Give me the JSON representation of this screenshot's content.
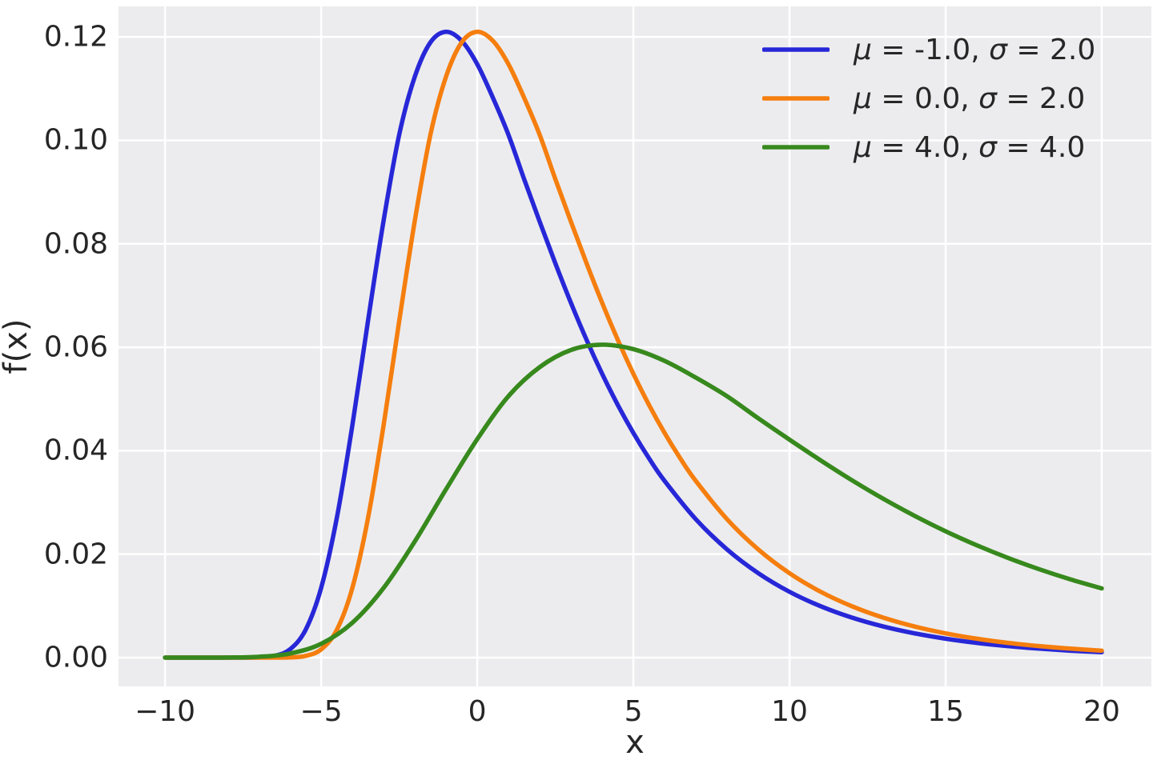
{
  "figure": {
    "background": "#ffffff",
    "plot_background": "#ececee",
    "grid_color": "#ffffff",
    "text_color": "#262626"
  },
  "chart_data": {
    "type": "line",
    "title": "",
    "xlabel": "x",
    "ylabel": "f(x)",
    "grid": true,
    "legend_position": "upper right",
    "xaxis": {
      "lim": [
        -11.49,
        21.59
      ],
      "ticks": [
        -10,
        -5,
        0,
        5,
        10,
        15,
        20
      ],
      "tick_labels": [
        "−10",
        "−5",
        "0",
        "5",
        "10",
        "15",
        "20"
      ]
    },
    "yaxis": {
      "lim": [
        -0.00557,
        0.1259
      ],
      "ticks": [
        0.0,
        0.02,
        0.04,
        0.06,
        0.08,
        0.1,
        0.12
      ],
      "tick_labels": [
        "0.00",
        "0.02",
        "0.04",
        "0.06",
        "0.08",
        "0.10",
        "0.12"
      ]
    },
    "legend_symbols": {
      "mu": "μ",
      "sigma": "σ",
      "equals": " = ",
      "separator": ", "
    },
    "series": [
      {
        "name": "μ = -1.0, σ = 2.0",
        "mu": "-1.0",
        "sigma": "2.0",
        "color": "#2727d8",
        "x": [
          -10,
          -9,
          -8,
          -7,
          -6.5,
          -6,
          -5.5,
          -5,
          -4.5,
          -4,
          -3.5,
          -3,
          -2.5,
          -2,
          -1.5,
          -1,
          -0.5,
          0,
          0.5,
          1,
          1.5,
          2,
          2.5,
          3,
          3.5,
          4,
          4.5,
          5,
          5.5,
          6,
          7,
          8,
          9,
          10,
          11,
          12,
          13,
          14,
          15,
          16,
          17,
          18,
          19,
          20
        ],
        "y": [
          0,
          0,
          0,
          4e-05,
          0.00032,
          0.00158,
          0.00534,
          0.01348,
          0.02694,
          0.04492,
          0.06507,
          0.08448,
          0.1011,
          0.11232,
          0.11894,
          0.12099,
          0.11925,
          0.11472,
          0.10825,
          0.10106,
          0.09252,
          0.08427,
          0.07623,
          0.06858,
          0.06143,
          0.05486,
          0.04885,
          0.04342,
          0.03853,
          0.03415,
          0.02675,
          0.02091,
          0.01632,
          0.01272,
          0.00992,
          0.00773,
          0.00602,
          0.00469,
          0.00365,
          0.00284,
          0.00222,
          0.00173,
          0.00134,
          0.00105
        ]
      },
      {
        "name": "μ = 0.0, σ = 2.0",
        "mu": "0.0",
        "sigma": "2.0",
        "color": "#f57e0e",
        "x": [
          -10,
          -9,
          -8,
          -7,
          -6,
          -5.5,
          -5,
          -4.5,
          -4,
          -3.5,
          -3,
          -2.5,
          -2,
          -1.5,
          -1,
          -0.5,
          0,
          0.5,
          1,
          1.5,
          2,
          2.5,
          3,
          3.5,
          4,
          4.5,
          5,
          5.5,
          6,
          6.5,
          7,
          8,
          9,
          10,
          11,
          12,
          13,
          14,
          15,
          16,
          17,
          18,
          19,
          20
        ],
        "y": [
          0,
          0,
          0,
          0,
          4e-05,
          0.00032,
          0.00158,
          0.00534,
          0.01348,
          0.02694,
          0.04492,
          0.06507,
          0.08448,
          0.1011,
          0.11232,
          0.11894,
          0.12099,
          0.11925,
          0.11472,
          0.10825,
          0.10106,
          0.09252,
          0.08427,
          0.07623,
          0.06858,
          0.06143,
          0.05486,
          0.04885,
          0.04342,
          0.03853,
          0.03415,
          0.02675,
          0.02091,
          0.01632,
          0.01272,
          0.00992,
          0.00773,
          0.00602,
          0.00469,
          0.00365,
          0.00284,
          0.00222,
          0.00173,
          0.00134
        ]
      },
      {
        "name": "μ = 4.0, σ = 4.0",
        "mu": "4.0",
        "sigma": "4.0",
        "color": "#37891d",
        "x": [
          -10,
          -9,
          -8,
          -7,
          -6,
          -5,
          -4,
          -3,
          -2,
          -1,
          0,
          1,
          2,
          3,
          4,
          5,
          6,
          7,
          8,
          9,
          10,
          11,
          12,
          13,
          14,
          15,
          16,
          17,
          18,
          19,
          20
        ],
        "y": [
          0,
          0,
          2e-05,
          0.00016,
          0.00079,
          0.00267,
          0.00674,
          0.01347,
          0.02246,
          0.03254,
          0.04224,
          0.05055,
          0.05616,
          0.05947,
          0.06049,
          0.05963,
          0.05736,
          0.05413,
          0.05053,
          0.04626,
          0.04214,
          0.03812,
          0.03429,
          0.03072,
          0.02743,
          0.02442,
          0.02171,
          0.01927,
          0.01708,
          0.01512,
          0.01338
        ]
      }
    ]
  }
}
